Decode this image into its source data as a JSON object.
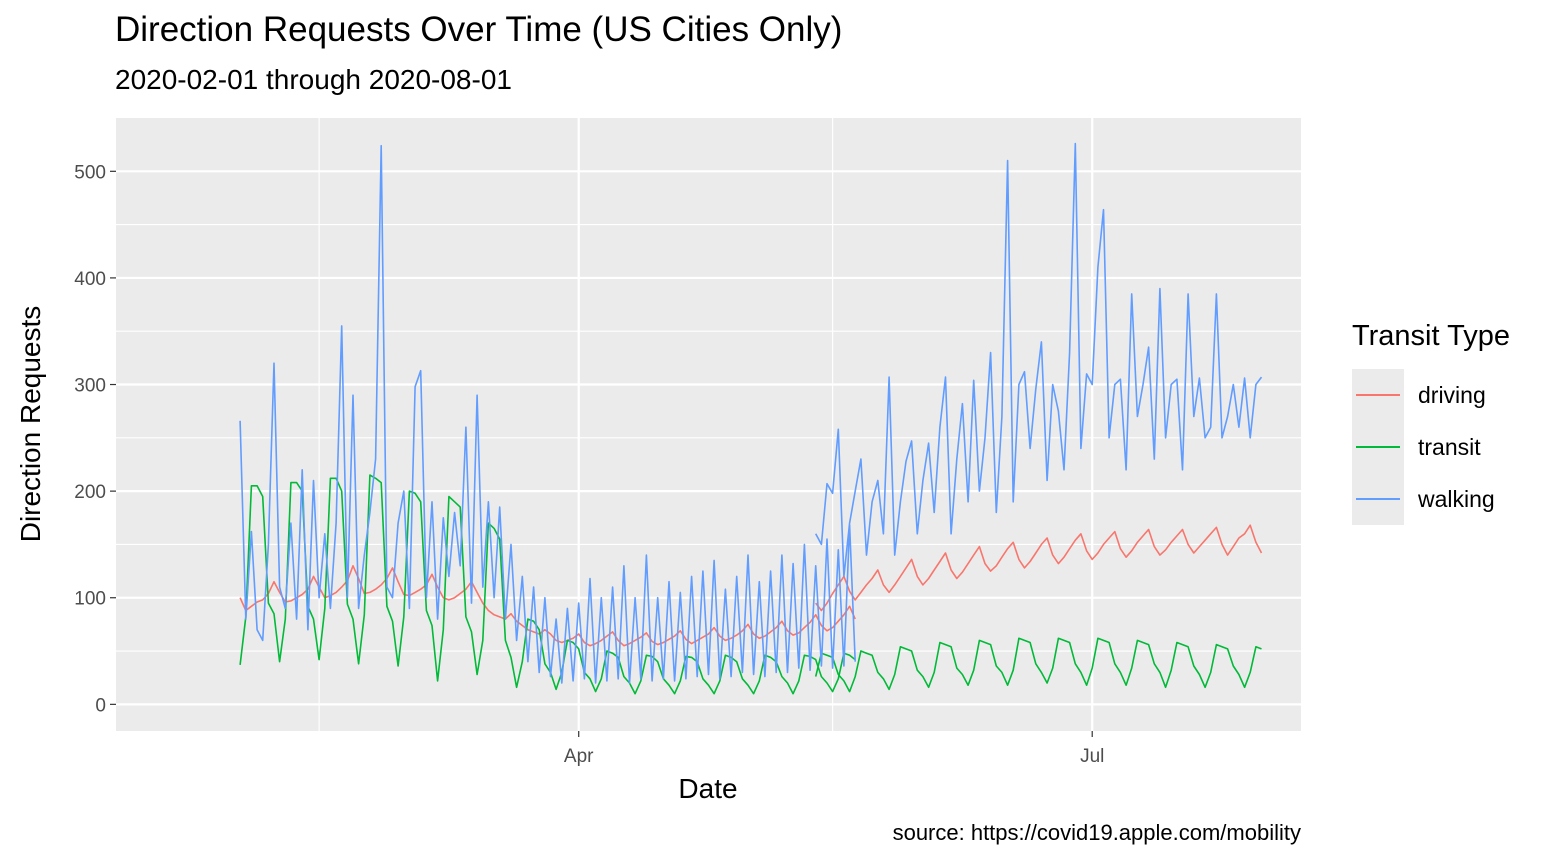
{
  "title": "Direction Requests Over Time (US Cities Only)",
  "subtitle": "2020-02-01 through 2020-08-01",
  "caption": "source: https://covid19.apple.com/mobility",
  "chart_data": {
    "type": "line",
    "xlabel": "Date",
    "ylabel": "Direction Requests",
    "x_ticks": [
      {
        "date": "2020-04-01",
        "label": "Apr"
      },
      {
        "date": "2020-07-01",
        "label": "Jul"
      }
    ],
    "xlim": [
      "2020-01-10",
      "2020-08-07"
    ],
    "ylim": [
      -25,
      550
    ],
    "y_ticks": [
      0,
      100,
      200,
      300,
      400,
      500
    ],
    "grid": true,
    "legend_title": "Transit Type",
    "legend_position": "right",
    "colors": {
      "driving": "#F8766D",
      "transit": "#00BA38",
      "walking": "#619CFF"
    },
    "gap": [
      "2020-05-11",
      "2020-05-12"
    ],
    "series": [
      {
        "name": "driving",
        "spans": [
          {
            "start": "2020-02-01",
            "values": [
              100,
              88,
              92,
              96,
              98,
              104,
              115,
              105,
              96,
              97,
              100,
              103,
              108,
              120,
              110,
              100,
              102,
              105,
              110,
              116,
              130,
              118,
              104,
              105,
              108,
              112,
              118,
              128,
              115,
              103,
              102,
              105,
              108,
              112,
              122,
              110,
              100,
              98,
              100,
              104,
              108,
              115,
              105,
              95,
              88,
              84,
              82,
              80,
              85,
              78,
              74,
              70,
              68,
              66,
              70,
              66,
              60,
              58,
              60,
              62,
              66,
              58,
              55,
              57,
              60,
              64,
              68,
              60,
              55,
              57,
              60,
              63,
              67,
              59,
              56,
              58,
              61,
              64,
              69,
              61,
              57,
              60,
              63,
              66,
              72,
              64,
              60,
              62,
              65,
              69,
              75,
              66,
              62,
              64,
              68,
              72,
              78,
              69,
              65,
              67,
              72,
              77,
              84,
              74,
              69,
              72,
              78,
              84,
              92,
              80
            ]
          },
          {
            "start": "2020-05-13",
            "values": [
              95,
              88,
              95,
              104,
              112,
              120,
              106,
              98,
              105,
              112,
              118,
              126,
              112,
              105,
              112,
              120,
              128,
              136,
              120,
              112,
              118,
              126,
              134,
              142,
              126,
              118,
              124,
              132,
              140,
              148,
              132,
              125,
              130,
              138,
              146,
              152,
              136,
              128,
              134,
              142,
              150,
              156,
              140,
              132,
              138,
              146,
              154,
              160,
              144,
              136,
              142,
              150,
              156,
              162,
              146,
              138,
              144,
              152,
              158,
              164,
              148,
              140,
              145,
              152,
              158,
              164,
              150,
              142,
              148,
              154,
              160,
              166,
              150,
              140,
              148,
              156,
              160,
              168,
              152,
              142
            ]
          }
        ]
      },
      {
        "name": "transit",
        "spans": [
          {
            "start": "2020-02-01",
            "values": [
              37,
              82,
              205,
              205,
              195,
              95,
              85,
              40,
              80,
              208,
              208,
              200,
              92,
              80,
              42,
              90,
              212,
              212,
              200,
              94,
              80,
              38,
              84,
              215,
              212,
              208,
              92,
              78,
              36,
              82,
              200,
              198,
              190,
              88,
              74,
              22,
              70,
              195,
              190,
              185,
              82,
              68,
              28,
              60,
              170,
              165,
              155,
              60,
              44,
              16,
              40,
              80,
              78,
              70,
              38,
              30,
              14,
              30,
              60,
              58,
              52,
              30,
              24,
              12,
              24,
              50,
              48,
              44,
              26,
              20,
              10,
              22,
              46,
              45,
              40,
              24,
              18,
              10,
              22,
              45,
              44,
              40,
              24,
              18,
              10,
              22,
              46,
              44,
              40,
              24,
              18,
              10,
              22,
              46,
              44,
              40,
              26,
              20,
              10,
              22,
              46,
              45,
              42,
              26,
              20,
              12,
              24,
              48,
              46,
              42
            ]
          },
          {
            "start": "2020-05-13",
            "values": [
              26,
              48,
              46,
              44,
              28,
              22,
              12,
              26,
              50,
              48,
              46,
              30,
              24,
              14,
              28,
              54,
              52,
              50,
              32,
              26,
              16,
              30,
              58,
              56,
              54,
              34,
              28,
              18,
              32,
              60,
              58,
              56,
              36,
              30,
              18,
              32,
              62,
              60,
              58,
              38,
              30,
              20,
              34,
              62,
              60,
              58,
              38,
              30,
              18,
              34,
              62,
              60,
              58,
              38,
              30,
              18,
              34,
              60,
              58,
              56,
              38,
              30,
              16,
              32,
              58,
              56,
              54,
              36,
              28,
              16,
              30,
              56,
              54,
              52,
              36,
              28,
              16,
              30,
              54,
              52
            ]
          }
        ]
      },
      {
        "name": "walking",
        "spans": [
          {
            "start": "2020-02-01",
            "values": [
              266,
              80,
              162,
              70,
              60,
              150,
              320,
              110,
              90,
              170,
              80,
              220,
              70,
              210,
              100,
              160,
              90,
              170,
              355,
              100,
              290,
              90,
              140,
              180,
              230,
              524,
              110,
              100,
              170,
              200,
              90,
              298,
              313,
              100,
              190,
              80,
              175,
              120,
              180,
              130,
              260,
              95,
              290,
              110,
              190,
              100,
              185,
              80,
              150,
              60,
              120,
              40,
              110,
              30,
              100,
              26,
              80,
              20,
              90,
              22,
              95,
              24,
              118,
              20,
              100,
              22,
              110,
              24,
              130,
              20,
              100,
              24,
              140,
              22,
              100,
              24,
              115,
              22,
              105,
              24,
              120,
              26,
              125,
              28,
              135,
              24,
              108,
              26,
              120,
              30,
              140,
              28,
              115,
              26,
              125,
              30,
              140,
              30,
              132,
              34,
              150,
              32,
              130,
              36,
              155,
              34,
              145,
              36,
              168,
              40
            ]
          },
          {
            "start": "2020-05-13",
            "values": [
              160,
              150,
              207,
              198,
              258,
              120,
              170,
              200,
              230,
              140,
              190,
              210,
              160,
              307,
              140,
              190,
              228,
              247,
              160,
              210,
              245,
              180,
              260,
              307,
              160,
              230,
              282,
              190,
              304,
              200,
              250,
              330,
              180,
              270,
              510,
              190,
              300,
              312,
              240,
              296,
              340,
              210,
              300,
              275,
              220,
              330,
              526,
              240,
              310,
              300,
              410,
              464,
              250,
              300,
              305,
              220,
              385,
              270,
              300,
              335,
              230,
              390,
              250,
              300,
              305,
              220,
              385,
              270,
              306,
              250,
              260,
              385,
              250,
              270,
              300,
              260,
              306,
              250,
              300,
              307
            ]
          }
        ]
      }
    ]
  }
}
